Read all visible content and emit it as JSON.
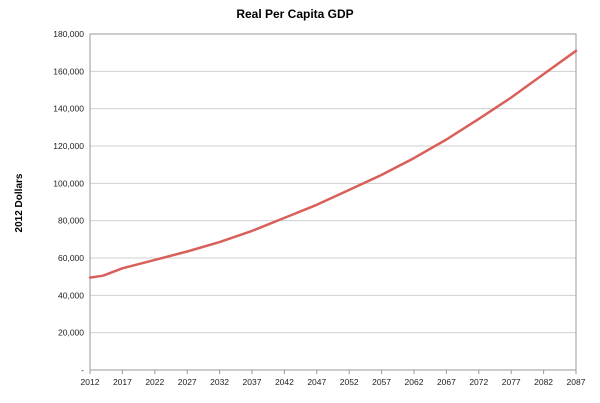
{
  "chart_data": {
    "type": "line",
    "title": "Real Per Capita GDP",
    "xlabel": "",
    "ylabel": "2012 Dollars",
    "ylim": [
      0,
      180000
    ],
    "yticks": [
      0,
      20000,
      40000,
      60000,
      80000,
      100000,
      120000,
      140000,
      160000,
      180000
    ],
    "ytick_labels": [
      "-",
      "20,000",
      "40,000",
      "60,000",
      "80,000",
      "100,000",
      "120,000",
      "140,000",
      "160,000",
      "180,000"
    ],
    "xlim": [
      2012,
      2087
    ],
    "xticks": [
      2012,
      2017,
      2022,
      2027,
      2032,
      2037,
      2042,
      2047,
      2052,
      2057,
      2062,
      2067,
      2072,
      2077,
      2082,
      2087
    ],
    "xtick_labels": [
      "2012",
      "2017",
      "2022",
      "2027",
      "2032",
      "2037",
      "2042",
      "2047",
      "2052",
      "2057",
      "2062",
      "2067",
      "2072",
      "2077",
      "2082",
      "2087"
    ],
    "grid": true,
    "series": [
      {
        "name": "Real Per Capita GDP",
        "color": "#d9605a",
        "x": [
          2012,
          2014,
          2017,
          2022,
          2027,
          2032,
          2037,
          2042,
          2047,
          2052,
          2057,
          2062,
          2067,
          2072,
          2077,
          2082,
          2087
        ],
        "values": [
          49500,
          50500,
          54500,
          59000,
          63500,
          68500,
          74500,
          81500,
          88500,
          96500,
          104500,
          113500,
          123500,
          134500,
          146000,
          158500,
          171000
        ]
      }
    ]
  }
}
